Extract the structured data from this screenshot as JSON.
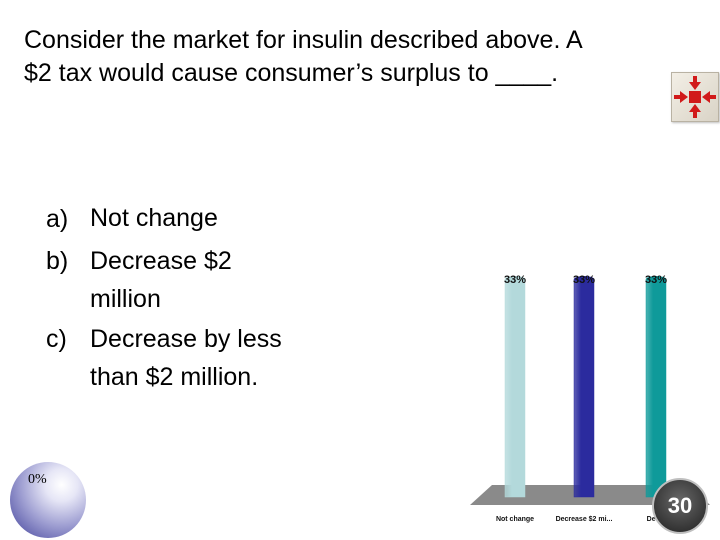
{
  "question": {
    "line1": "Consider the market for insulin described above.  A",
    "line2": "$2 tax would cause consumer’s surplus to ____."
  },
  "answers": [
    {
      "letter": "a)",
      "lines": [
        "Not change"
      ]
    },
    {
      "letter": "b)",
      "lines": [
        "Decrease $2",
        "million"
      ]
    },
    {
      "letter": "c)",
      "lines": [
        "Decrease by less",
        "than $2 million."
      ]
    }
  ],
  "countdown": {
    "label": "0%"
  },
  "timer": {
    "value": "30"
  },
  "icons": {
    "responses": "arrows-converging-icon"
  },
  "colors": {
    "bar_a": "#b3d9db",
    "bar_b": "#2b2b9e",
    "bar_c": "#0f9a9a",
    "icon_red": "#d11a1a"
  },
  "chart_data": {
    "type": "bar",
    "categories": [
      "Not change",
      "Decrease $2 mi...",
      "Dec..."
    ],
    "values": [
      33,
      33,
      33
    ],
    "value_labels": [
      "33%",
      "33%",
      "33%"
    ],
    "ylim": [
      0,
      33
    ],
    "grid": false,
    "legend": "none"
  }
}
